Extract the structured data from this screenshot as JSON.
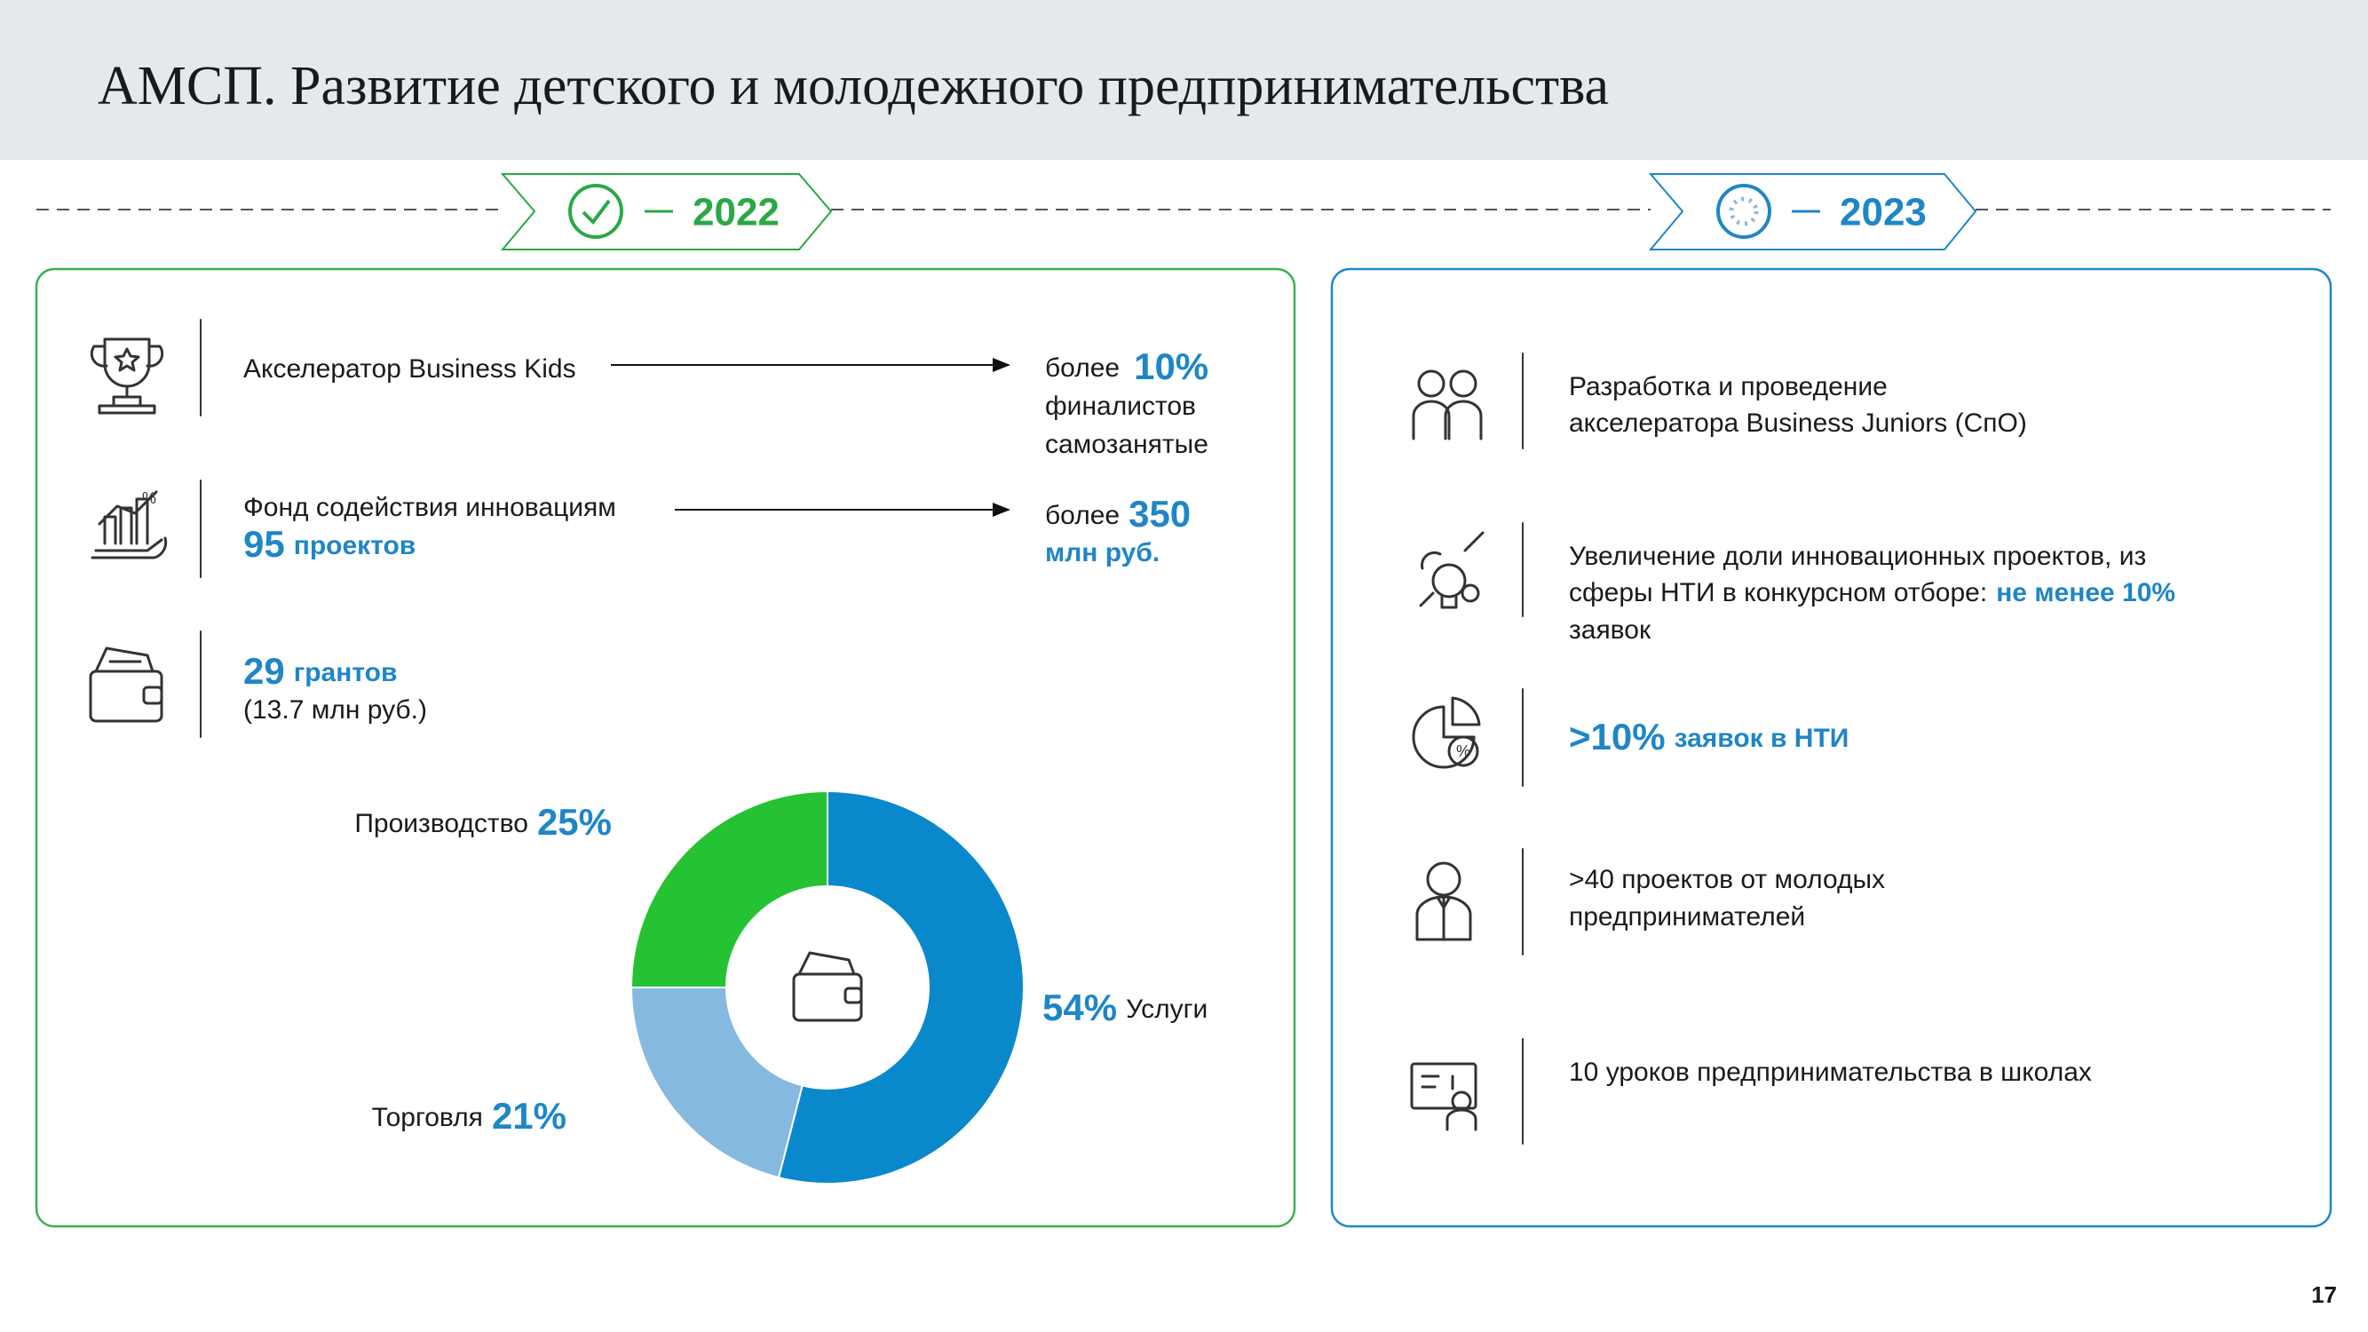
{
  "header": {
    "title": "АМСП. Развитие детского и молодежного предпринимательства"
  },
  "timeline": {
    "left_year": "2022",
    "right_year": "2023"
  },
  "left_panel": {
    "items": [
      {
        "label": "Акселератор Business Kids",
        "result_prefix": "более",
        "result_value": "10%",
        "result_lines": [
          "финалистов",
          "самозанятые"
        ]
      },
      {
        "label": "Фонд содействия инновациям",
        "value": "95",
        "unit": "проектов",
        "result_prefix": "более",
        "result_value": "350",
        "result_lines": [
          "млн руб."
        ]
      },
      {
        "value": "29",
        "unit": "грантов",
        "note": "(13.7 млн руб.)"
      }
    ]
  },
  "chart_data": {
    "type": "pie",
    "categories": [
      "Услуги",
      "Торговля",
      "Производство"
    ],
    "values": [
      54,
      21,
      25
    ],
    "value_labels": [
      "54%",
      "21%",
      "25%"
    ],
    "colors": [
      "#0a88cc",
      "#86b9e0",
      "#25c233"
    ]
  },
  "right_panel": {
    "items": [
      {
        "lines": [
          "Разработка и проведение",
          "акселератора Business Juniors (СпО)"
        ]
      },
      {
        "line1": "Увеличение доли инновационных проектов, из",
        "line2": "сферы НТИ в конкурсном отборе:",
        "highlight": "не менее 10%",
        "line3": "заявок"
      },
      {
        "value": ">10%",
        "text": "заявок в НТИ"
      },
      {
        "lines": [
          ">40 проектов от молодых",
          "предпринимателей"
        ]
      },
      {
        "lines": [
          "10 уроков предпринимательства в школах"
        ]
      }
    ]
  },
  "page_number": "17"
}
